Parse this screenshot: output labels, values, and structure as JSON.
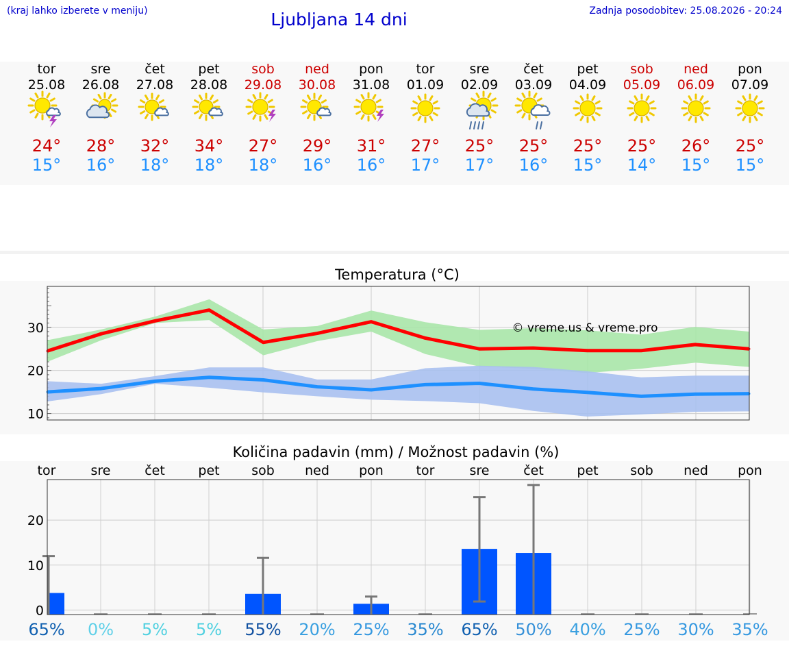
{
  "header": {
    "hint": "(kraj lahko izberete v meniju)",
    "title": "Ljubljana 14 dni",
    "updated": "Zadnja posodobitev: 25.08.2026 - 20:24"
  },
  "colors": {
    "max": "#ff0000",
    "min": "#1e90ff",
    "max_band": "#a8e6a8",
    "min_band": "#a8c0f0",
    "bar": "#0055ff",
    "weekend": "#cc0000",
    "copyright": "#0000cc"
  },
  "forecast": {
    "days": [
      {
        "wd": "tor",
        "date": "25.08",
        "icon": "sun-cloud-storm-icon",
        "hi": "24°",
        "lo": "15°",
        "weekend": false
      },
      {
        "wd": "sre",
        "date": "26.08",
        "icon": "sun-cloud-icon",
        "hi": "28°",
        "lo": "16°",
        "weekend": false
      },
      {
        "wd": "čet",
        "date": "27.08",
        "icon": "sun-small-cloud-icon",
        "hi": "32°",
        "lo": "18°",
        "weekend": false
      },
      {
        "wd": "pet",
        "date": "28.08",
        "icon": "sun-small-cloud-icon",
        "hi": "34°",
        "lo": "18°",
        "weekend": false
      },
      {
        "wd": "sob",
        "date": "29.08",
        "icon": "sun-storm-icon",
        "hi": "27°",
        "lo": "18°",
        "weekend": true
      },
      {
        "wd": "ned",
        "date": "30.08",
        "icon": "sun-small-cloud-icon",
        "hi": "29°",
        "lo": "16°",
        "weekend": true
      },
      {
        "wd": "pon",
        "date": "31.08",
        "icon": "sun-storm-icon",
        "hi": "31°",
        "lo": "16°",
        "weekend": false
      },
      {
        "wd": "tor",
        "date": "01.09",
        "icon": "sun-icon",
        "hi": "27°",
        "lo": "17°",
        "weekend": false
      },
      {
        "wd": "sre",
        "date": "02.09",
        "icon": "sun-cloud-rain-icon",
        "hi": "25°",
        "lo": "17°",
        "weekend": false
      },
      {
        "wd": "čet",
        "date": "03.09",
        "icon": "sun-cloud-drizzle-icon",
        "hi": "25°",
        "lo": "16°",
        "weekend": false
      },
      {
        "wd": "pet",
        "date": "04.09",
        "icon": "sun-icon",
        "hi": "25°",
        "lo": "15°",
        "weekend": false
      },
      {
        "wd": "sob",
        "date": "05.09",
        "icon": "sun-icon",
        "hi": "25°",
        "lo": "14°",
        "weekend": true
      },
      {
        "wd": "ned",
        "date": "06.09",
        "icon": "sun-icon",
        "hi": "26°",
        "lo": "15°",
        "weekend": true
      },
      {
        "wd": "pon",
        "date": "07.09",
        "icon": "sun-icon",
        "hi": "25°",
        "lo": "15°",
        "weekend": false
      }
    ]
  },
  "chart_data": [
    {
      "type": "line",
      "title": "Temperatura (°C)",
      "copyright": "© vreme.us & vreme.pro",
      "x": [
        0,
        1,
        2,
        3,
        4,
        5,
        6,
        7,
        8,
        9,
        10,
        11,
        12,
        13
      ],
      "ylim": [
        8.5,
        39.5
      ],
      "yticks": [
        10,
        20,
        30
      ],
      "grid": true,
      "series": [
        {
          "values": [
            24.5,
            28.5,
            31.5,
            34,
            26.5,
            28.6,
            31.3,
            27.5,
            25,
            25.2,
            24.6,
            24.6,
            26,
            25
          ],
          "band_upper": [
            27,
            29.5,
            32.5,
            36.5,
            29.5,
            30.3,
            33.9,
            31.2,
            29.4,
            29.8,
            29.3,
            28.3,
            30.1,
            29
          ],
          "band_lower": [
            22,
            27,
            31,
            31.7,
            23.5,
            26.8,
            29,
            23.8,
            20.9,
            20.4,
            19.4,
            20.4,
            21.8,
            20.8
          ]
        },
        {
          "values": [
            15,
            15.8,
            17.5,
            18.4,
            17.8,
            16.2,
            15.5,
            16.7,
            17,
            15.7,
            14.9,
            14,
            14.5,
            14.6
          ],
          "band_upper": [
            17.5,
            16.9,
            18.7,
            20.7,
            20.7,
            17.9,
            17.9,
            20.5,
            21.1,
            20.8,
            19.8,
            18.4,
            18.8,
            18.8
          ],
          "band_lower": [
            12.8,
            14.5,
            16.9,
            16,
            14.9,
            14,
            13.2,
            12.9,
            12.4,
            10.6,
            9.3,
            9.8,
            10.4,
            10.5
          ]
        }
      ]
    },
    {
      "type": "bar",
      "title": "Količina padavin (mm) / Možnost padavin (%)",
      "categories": [
        "tor",
        "sre",
        "čet",
        "pet",
        "sob",
        "ned",
        "pon",
        "tor",
        "sre",
        "čet",
        "pet",
        "sob",
        "ned",
        "pon"
      ],
      "values": [
        3.8,
        0,
        0,
        0,
        3.6,
        0,
        1.4,
        0,
        13.6,
        12.7,
        0,
        0,
        0,
        0
      ],
      "error_upper": [
        12,
        0,
        0,
        0,
        11.6,
        0,
        3,
        0,
        25.1,
        27.8,
        0,
        0,
        0,
        0
      ],
      "error_lower": [
        0,
        0,
        0,
        0,
        0,
        0,
        0,
        0,
        1.9,
        0,
        0,
        0,
        0,
        0
      ],
      "probability": [
        "65%",
        "0%",
        "5%",
        "5%",
        "55%",
        "20%",
        "25%",
        "35%",
        "65%",
        "50%",
        "40%",
        "25%",
        "30%",
        "35%"
      ],
      "prob_colors": [
        "#1060b0",
        "#60d0e8",
        "#50d0e0",
        "#50d0e0",
        "#1050a0",
        "#3aa0e0",
        "#3598e0",
        "#2888d0",
        "#1060b0",
        "#3590d8",
        "#3aa0e0",
        "#3598e0",
        "#3598e0",
        "#3598e0"
      ],
      "ylim": [
        -1,
        29
      ],
      "yticks": [
        0,
        10,
        20
      ],
      "grid": true
    }
  ]
}
